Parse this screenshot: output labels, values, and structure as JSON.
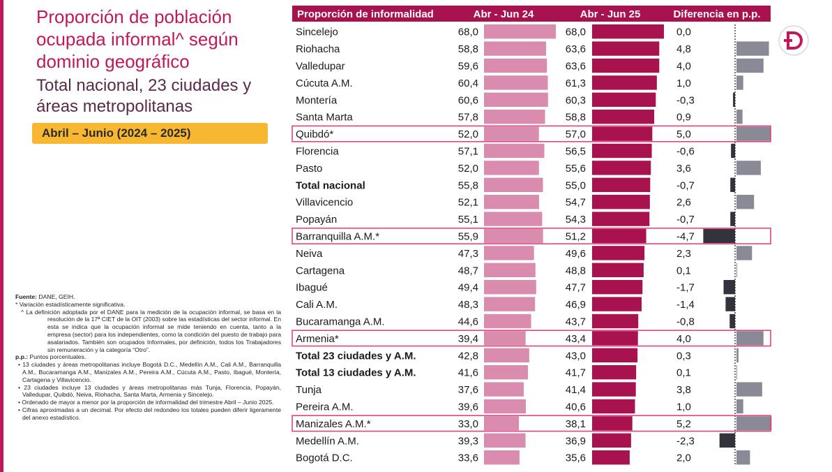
{
  "title_main": "Proporción de población ocupada informal^ según dominio geográfico",
  "title_sub": "Total nacional, 23 ciudades y áreas metropolitanas",
  "period": "Abril – Junio (2024 – 2025)",
  "logo_letter": "D",
  "notes": {
    "fuente_label": "Fuente:",
    "fuente_text": " DANE, GEIH.",
    "sig": "* Variación estadísticamente significativa.",
    "informal": "^ La definición adoptada por el DANE para la medición de la ocupación informal, se basa en la resolución de la 17ª CIET de la OIT (2003) sobre las estadísticas del sector informal. En esta se indica que la ocupación informal se mide teniendo en cuenta, tanto a la empresa (sector) para los independientes, como la condición del puesto de trabajo para asalariados. También son ocupados Informales, por definición, todos los Trabajadores sin remuneración y la categoría “Otro”.",
    "pp_label": "p.p.:",
    "pp_text": " Puntos porcentuales.",
    "b1": "• 13 ciudades y áreas metropolitanas incluye Bogotá D.C., Medellín A.M., Cali A.M., Barranquilla A.M., Bucaramanga A.M., Manizales A.M., Pereira A.M., Cúcuta A.M., Pasto, Ibagué, Montería, Cartagena y Villavicencio.",
    "b2": "• 23 ciudades incluye 13 ciudades y áreas metropolitanas más Tunja, Florencia, Popayán, Valledupar, Quibdó, Neiva, Riohacha, Santa Marta, Armenia y Sincelejo.",
    "b3": "• Ordenado de mayor a menor por la proporción de informalidad del trimestre Abril – Junio 2025.",
    "b4": "• Cifras aproximadas a un decimal. Por efecto del redondeo los totales pueden diferir ligeramente del anexo estadístico."
  },
  "chart_data": {
    "type": "table",
    "headers": [
      "Proporción de informalidad",
      "Abr - Jun 24",
      "Abr - Jun 25",
      "Diferencia en p.p."
    ],
    "rows": [
      {
        "label": "Sincelejo",
        "v24": 68.0,
        "v24_text": "68,0",
        "v25": 68.0,
        "v25_text": "68,0",
        "diff": 0.0,
        "diff_text": "0,0",
        "bold": false,
        "highlight": false
      },
      {
        "label": "Riohacha",
        "v24": 58.8,
        "v24_text": "58,8",
        "v25": 63.6,
        "v25_text": "63,6",
        "diff": 4.8,
        "diff_text": "4,8",
        "bold": false,
        "highlight": false
      },
      {
        "label": "Valledupar",
        "v24": 59.6,
        "v24_text": "59,6",
        "v25": 63.6,
        "v25_text": "63,6",
        "diff": 4.0,
        "diff_text": "4,0",
        "bold": false,
        "highlight": false
      },
      {
        "label": "Cúcuta A.M.",
        "v24": 60.4,
        "v24_text": "60,4",
        "v25": 61.3,
        "v25_text": "61,3",
        "diff": 1.0,
        "diff_text": "1,0",
        "bold": false,
        "highlight": false
      },
      {
        "label": "Montería",
        "v24": 60.6,
        "v24_text": "60,6",
        "v25": 60.3,
        "v25_text": "60,3",
        "diff": -0.3,
        "diff_text": "-0,3",
        "bold": false,
        "highlight": false
      },
      {
        "label": "Santa Marta",
        "v24": 57.8,
        "v24_text": "57,8",
        "v25": 58.8,
        "v25_text": "58,8",
        "diff": 0.9,
        "diff_text": "0,9",
        "bold": false,
        "highlight": false
      },
      {
        "label": "Quibdó*",
        "v24": 52.0,
        "v24_text": "52,0",
        "v25": 57.0,
        "v25_text": "57,0",
        "diff": 5.0,
        "diff_text": "5,0",
        "bold": false,
        "highlight": true
      },
      {
        "label": "Florencia",
        "v24": 57.1,
        "v24_text": "57,1",
        "v25": 56.5,
        "v25_text": "56,5",
        "diff": -0.6,
        "diff_text": "-0,6",
        "bold": false,
        "highlight": false
      },
      {
        "label": "Pasto",
        "v24": 52.0,
        "v24_text": "52,0",
        "v25": 55.6,
        "v25_text": "55,6",
        "diff": 3.6,
        "diff_text": "3,6",
        "bold": false,
        "highlight": false
      },
      {
        "label": "Total nacional",
        "v24": 55.8,
        "v24_text": "55,8",
        "v25": 55.0,
        "v25_text": "55,0",
        "diff": -0.7,
        "diff_text": "-0,7",
        "bold": true,
        "highlight": false
      },
      {
        "label": "Villavicencio",
        "v24": 52.1,
        "v24_text": "52,1",
        "v25": 54.7,
        "v25_text": "54,7",
        "diff": 2.6,
        "diff_text": "2,6",
        "bold": false,
        "highlight": false
      },
      {
        "label": "Popayán",
        "v24": 55.1,
        "v24_text": "55,1",
        "v25": 54.3,
        "v25_text": "54,3",
        "diff": -0.7,
        "diff_text": "-0,7",
        "bold": false,
        "highlight": false
      },
      {
        "label": "Barranquilla A.M.*",
        "v24": 55.9,
        "v24_text": "55,9",
        "v25": 51.2,
        "v25_text": "51,2",
        "diff": -4.7,
        "diff_text": "-4,7",
        "bold": false,
        "highlight": true
      },
      {
        "label": "Neiva",
        "v24": 47.3,
        "v24_text": "47,3",
        "v25": 49.6,
        "v25_text": "49,6",
        "diff": 2.3,
        "diff_text": "2,3",
        "bold": false,
        "highlight": false
      },
      {
        "label": "Cartagena",
        "v24": 48.7,
        "v24_text": "48,7",
        "v25": 48.8,
        "v25_text": "48,8",
        "diff": 0.1,
        "diff_text": "0,1",
        "bold": false,
        "highlight": false
      },
      {
        "label": "Ibagué",
        "v24": 49.4,
        "v24_text": "49,4",
        "v25": 47.7,
        "v25_text": "47,7",
        "diff": -1.7,
        "diff_text": "-1,7",
        "bold": false,
        "highlight": false
      },
      {
        "label": "Cali A.M.",
        "v24": 48.3,
        "v24_text": "48,3",
        "v25": 46.9,
        "v25_text": "46,9",
        "diff": -1.4,
        "diff_text": "-1,4",
        "bold": false,
        "highlight": false
      },
      {
        "label": "Bucaramanga A.M.",
        "v24": 44.6,
        "v24_text": "44,6",
        "v25": 43.7,
        "v25_text": "43,7",
        "diff": -0.8,
        "diff_text": "-0,8",
        "bold": false,
        "highlight": false
      },
      {
        "label": "Armenia*",
        "v24": 39.4,
        "v24_text": "39,4",
        "v25": 43.4,
        "v25_text": "43,4",
        "diff": 4.0,
        "diff_text": "4,0",
        "bold": false,
        "highlight": true
      },
      {
        "label": "Total 23 ciudades y A.M.",
        "v24": 42.8,
        "v24_text": "42,8",
        "v25": 43.0,
        "v25_text": "43,0",
        "diff": 0.3,
        "diff_text": "0,3",
        "bold": true,
        "highlight": false
      },
      {
        "label": "Total 13 ciudades y A.M.",
        "v24": 41.6,
        "v24_text": "41,6",
        "v25": 41.7,
        "v25_text": "41,7",
        "diff": 0.1,
        "diff_text": "0,1",
        "bold": true,
        "highlight": false
      },
      {
        "label": "Tunja",
        "v24": 37.6,
        "v24_text": "37,6",
        "v25": 41.4,
        "v25_text": "41,4",
        "diff": 3.8,
        "diff_text": "3,8",
        "bold": false,
        "highlight": false
      },
      {
        "label": "Pereira A.M.",
        "v24": 39.6,
        "v24_text": "39,6",
        "v25": 40.6,
        "v25_text": "40,6",
        "diff": 1.0,
        "diff_text": "1,0",
        "bold": false,
        "highlight": false
      },
      {
        "label": "Manizales A.M.*",
        "v24": 33.0,
        "v24_text": "33,0",
        "v25": 38.1,
        "v25_text": "38,1",
        "diff": 5.2,
        "diff_text": "5,2",
        "bold": false,
        "highlight": true
      },
      {
        "label": "Medellín A.M.",
        "v24": 39.3,
        "v24_text": "39,3",
        "v25": 36.9,
        "v25_text": "36,9",
        "diff": -2.3,
        "diff_text": "-2,3",
        "bold": false,
        "highlight": false
      },
      {
        "label": "Bogotá D.C.",
        "v24": 33.6,
        "v24_text": "33,6",
        "v25": 35.6,
        "v25_text": "35,6",
        "diff": 2.0,
        "diff_text": "2,0",
        "bold": false,
        "highlight": false
      }
    ],
    "colors": {
      "header_bg": "#a8124f",
      "bar_24": "#d98cae",
      "bar_25": "#a8124f",
      "diff_pos": "#8a8a96",
      "diff_neg": "#33333d",
      "highlight_border": "#e0457b"
    }
  }
}
